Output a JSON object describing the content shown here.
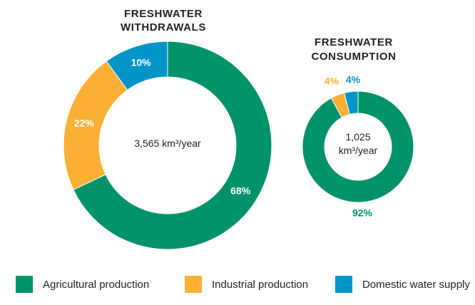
{
  "colors": {
    "agricultural": "#00936a",
    "industrial": "#fbb034",
    "domestic": "#0094c7",
    "text": "#231f20"
  },
  "chart_data": [
    {
      "type": "pie",
      "title_lines": [
        "FRESHWATER",
        "WITHDRAWALS"
      ],
      "center_label_lines": [
        "3,565 km³/year"
      ],
      "series": [
        {
          "name": "Agricultural production",
          "value": 68,
          "label": "68%",
          "color_key": "agricultural"
        },
        {
          "name": "Industrial production",
          "value": 22,
          "label": "22%",
          "color_key": "industrial"
        },
        {
          "name": "Domestic water supply",
          "value": 10,
          "label": "10%",
          "color_key": "domestic"
        }
      ]
    },
    {
      "type": "pie",
      "title_lines": [
        "FRESHWATER",
        "CONSUMPTION"
      ],
      "center_label_lines": [
        "1,025",
        "km³/year"
      ],
      "series": [
        {
          "name": "Agricultural production",
          "value": 92,
          "label": "92%",
          "color_key": "agricultural"
        },
        {
          "name": "Industrial production",
          "value": 4,
          "label": "4%",
          "color_key": "industrial"
        },
        {
          "name": "Domestic water supply",
          "value": 4,
          "label": "4%",
          "color_key": "domestic"
        }
      ]
    }
  ],
  "legend": [
    {
      "label": "Agricultural production",
      "color_key": "agricultural"
    },
    {
      "label": "Industrial production",
      "color_key": "industrial"
    },
    {
      "label": "Domestic water supply",
      "color_key": "domestic"
    }
  ]
}
